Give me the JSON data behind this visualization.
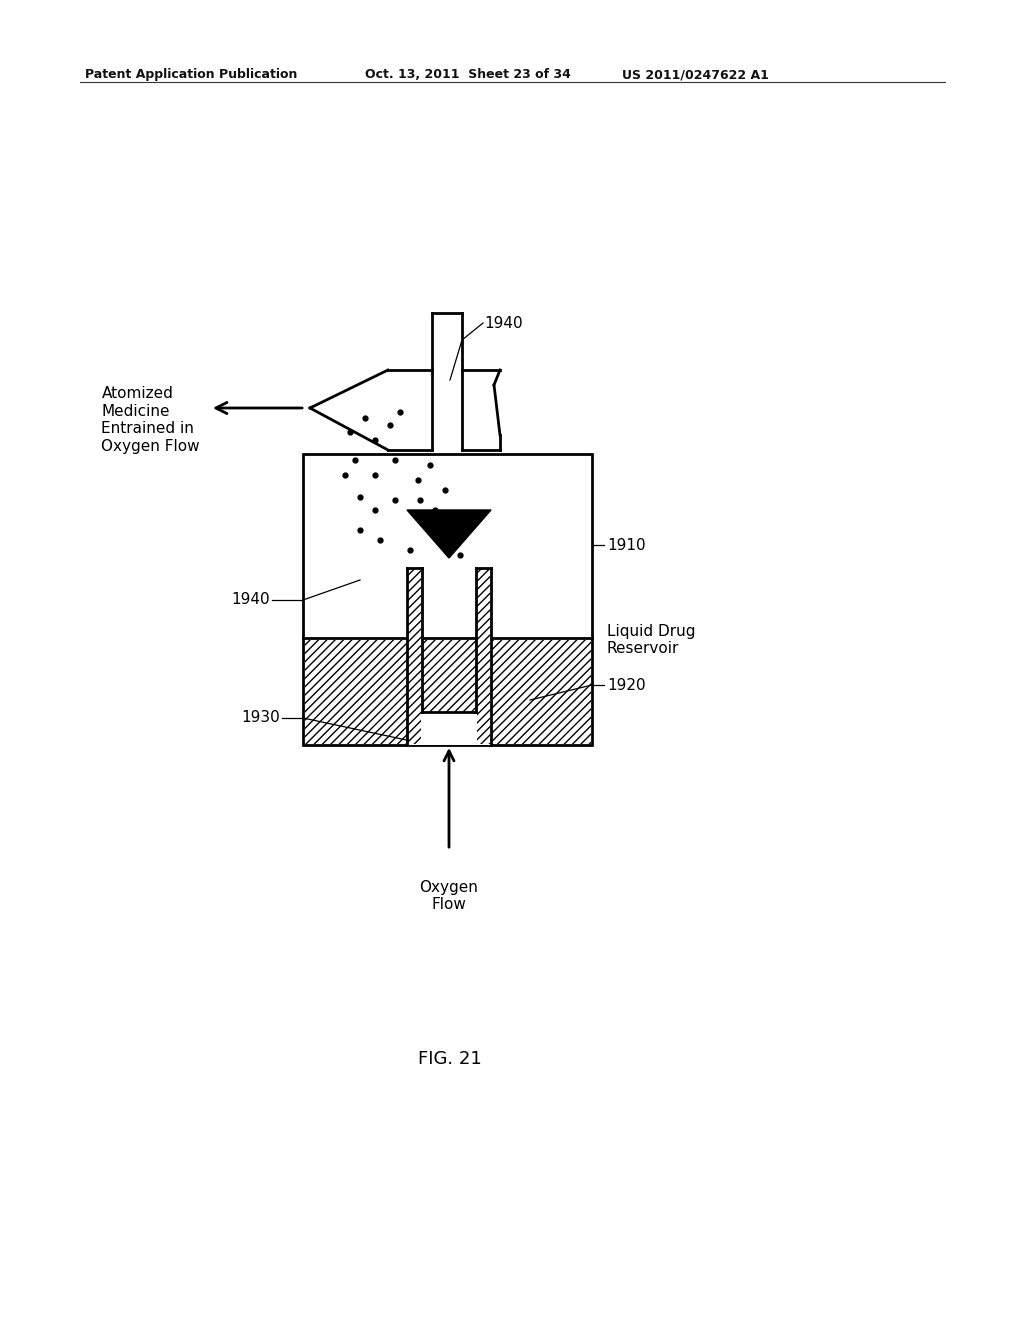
{
  "bg_color": "#ffffff",
  "header_left": "Patent Application Publication",
  "header_mid": "Oct. 13, 2011  Sheet 23 of 34",
  "header_right": "US 2011/0247622 A1",
  "fig_label": "FIG. 21",
  "labels": {
    "1940_top": "1940",
    "1910": "1910",
    "1940_side": "1940",
    "1920": "1920",
    "1930": "1930",
    "atomized": "Atomized\nMedicine\nEntrained in\nOxygen Flow",
    "liquid_drug": "Liquid Drug\nReservoir",
    "oxygen_flow": "Oxygen\nFlow"
  },
  "line_color": "#000000",
  "hatch_color": "#000000",
  "dot_color": "#000000"
}
